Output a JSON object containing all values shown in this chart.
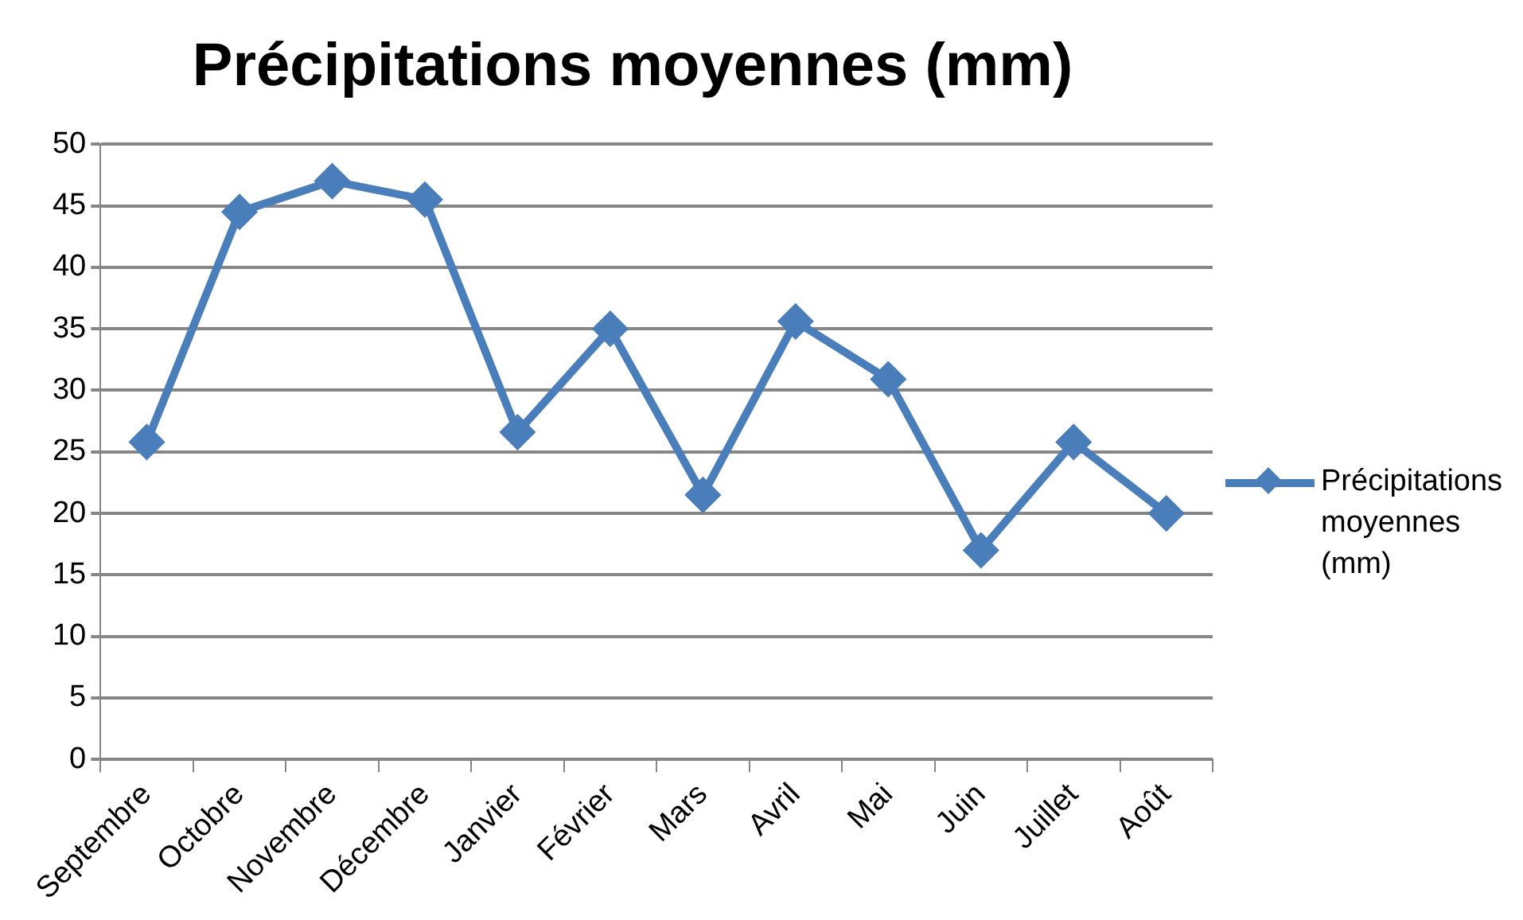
{
  "chart_data": {
    "type": "line",
    "title": "Précipitations moyennes (mm)",
    "categories": [
      "Septembre",
      "Octobre",
      "Novembre",
      "Décembre",
      "Janvier",
      "Février",
      "Mars",
      "Avril",
      "Mai",
      "Juin",
      "Juillet",
      "Août"
    ],
    "series": [
      {
        "name": "Précipitations moyennes (mm)",
        "color": "#4a7ebb",
        "values": [
          25.8,
          44.5,
          47,
          45.5,
          26.6,
          35,
          21.5,
          35.6,
          30.9,
          17,
          25.8,
          20
        ]
      }
    ],
    "ylim": [
      0,
      50
    ],
    "yticks": [
      0,
      5,
      10,
      15,
      20,
      25,
      30,
      35,
      40,
      45,
      50
    ],
    "grid": "y",
    "legend": "right",
    "marker": "diamond",
    "line_style": "solid"
  }
}
